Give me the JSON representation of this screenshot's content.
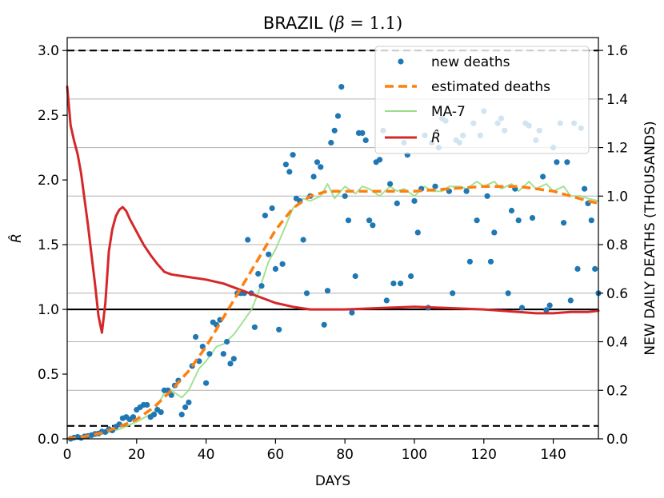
{
  "chart_data": {
    "type": "line",
    "title": "BRAZIL (β = 1.1)",
    "title_prefix": "BRAZIL (",
    "title_beta": "β",
    "title_rest": " = 1.1)",
    "xlabel": "DAYS",
    "ylabel_left": "R̂",
    "ylabel_right": "NEW DAILY DEATHS (THOUSANDS)",
    "xlim": [
      0,
      153
    ],
    "ylim_left": [
      0,
      3.1
    ],
    "ylim_right": [
      0,
      1.653
    ],
    "x_ticks": [
      0,
      20,
      40,
      60,
      80,
      100,
      120,
      140
    ],
    "x_tick_labels": [
      "0",
      "20",
      "40",
      "60",
      "80",
      "100",
      "120",
      "140"
    ],
    "y_left_ticks": [
      0.0,
      0.5,
      1.0,
      1.5,
      2.0,
      2.5,
      3.0
    ],
    "y_left_tick_labels": [
      "0.0",
      "0.5",
      "1.0",
      "1.5",
      "2.0",
      "2.5",
      "3.0"
    ],
    "y_right_ticks": [
      0.0,
      0.2,
      0.4,
      0.6,
      0.8,
      1.0,
      1.2,
      1.4,
      1.6
    ],
    "y_right_tick_labels": [
      "0.0",
      "0.2",
      "0.4",
      "0.6",
      "0.8",
      "1.0",
      "1.2",
      "1.4",
      "1.6"
    ],
    "grid": "horizontal lines at right-axis ticks",
    "reference_lines": [
      {
        "axis": "left",
        "y": 3.0,
        "style": "dashed",
        "color": "#000000"
      },
      {
        "axis": "left",
        "y": 0.1,
        "style": "dashed",
        "color": "#000000"
      },
      {
        "axis": "left",
        "y": 1.0,
        "style": "solid",
        "color": "#000000"
      }
    ],
    "legend": {
      "position": "upper-right",
      "entries": [
        "new deaths",
        "estimated deaths",
        "MA-7",
        "R̂"
      ]
    },
    "series": [
      {
        "name": "new deaths",
        "kind": "scatter",
        "axis": "right",
        "color": "#1f77b4",
        "points": [
          [
            1,
            0.0
          ],
          [
            2,
            0.005
          ],
          [
            3,
            0.008
          ],
          [
            4,
            0.004
          ],
          [
            5,
            0.01
          ],
          [
            6,
            0.012
          ],
          [
            7,
            0.015
          ],
          [
            8,
            0.02
          ],
          [
            9,
            0.022
          ],
          [
            10,
            0.03
          ],
          [
            11,
            0.028
          ],
          [
            12,
            0.04
          ],
          [
            13,
            0.035
          ],
          [
            14,
            0.05
          ],
          [
            15,
            0.06
          ],
          [
            16,
            0.085
          ],
          [
            17,
            0.09
          ],
          [
            18,
            0.08
          ],
          [
            19,
            0.09
          ],
          [
            20,
            0.12
          ],
          [
            21,
            0.13
          ],
          [
            22,
            0.14
          ],
          [
            23,
            0.14
          ],
          [
            24,
            0.09
          ],
          [
            25,
            0.1
          ],
          [
            26,
            0.12
          ],
          [
            27,
            0.11
          ],
          [
            28,
            0.2
          ],
          [
            29,
            0.2
          ],
          [
            30,
            0.18
          ],
          [
            31,
            0.22
          ],
          [
            32,
            0.24
          ],
          [
            33,
            0.1
          ],
          [
            34,
            0.13
          ],
          [
            35,
            0.15
          ],
          [
            36,
            0.3
          ],
          [
            37,
            0.42
          ],
          [
            38,
            0.32
          ],
          [
            39,
            0.38
          ],
          [
            40,
            0.23
          ],
          [
            41,
            0.35
          ],
          [
            42,
            0.48
          ],
          [
            43,
            0.47
          ],
          [
            44,
            0.49
          ],
          [
            45,
            0.35
          ],
          [
            46,
            0.4
          ],
          [
            47,
            0.31
          ],
          [
            48,
            0.33
          ],
          [
            49,
            0.6
          ],
          [
            50,
            0.6
          ],
          [
            51,
            0.6
          ],
          [
            52,
            0.82
          ],
          [
            53,
            0.6
          ],
          [
            54,
            0.46
          ],
          [
            55,
            0.68
          ],
          [
            56,
            0.63
          ],
          [
            57,
            0.92
          ],
          [
            58,
            0.76
          ],
          [
            59,
            0.95
          ],
          [
            60,
            0.7
          ],
          [
            61,
            0.45
          ],
          [
            62,
            0.72
          ],
          [
            63,
            1.13
          ],
          [
            64,
            1.1
          ],
          [
            65,
            1.17
          ],
          [
            66,
            0.99
          ],
          [
            67,
            0.98
          ],
          [
            68,
            0.82
          ],
          [
            69,
            0.6
          ],
          [
            70,
            1.0
          ],
          [
            71,
            1.08
          ],
          [
            72,
            1.14
          ],
          [
            73,
            1.12
          ],
          [
            74,
            0.47
          ],
          [
            75,
            0.61
          ],
          [
            76,
            1.22
          ],
          [
            77,
            1.27
          ],
          [
            78,
            1.33
          ],
          [
            79,
            1.45
          ],
          [
            80,
            1.0
          ],
          [
            81,
            0.9
          ],
          [
            82,
            0.52
          ],
          [
            83,
            0.67
          ],
          [
            84,
            1.26
          ],
          [
            85,
            1.26
          ],
          [
            86,
            1.23
          ],
          [
            87,
            0.9
          ],
          [
            88,
            0.88
          ],
          [
            89,
            1.14
          ],
          [
            90,
            1.15
          ],
          [
            91,
            1.27
          ],
          [
            92,
            0.57
          ],
          [
            93,
            1.05
          ],
          [
            94,
            0.64
          ],
          [
            95,
            0.97
          ],
          [
            96,
            0.64
          ],
          [
            97,
            1.22
          ],
          [
            98,
            1.17
          ],
          [
            99,
            0.67
          ],
          [
            100,
            0.98
          ],
          [
            101,
            0.85
          ],
          [
            102,
            1.03
          ],
          [
            103,
            1.25
          ],
          [
            104,
            0.54
          ],
          [
            105,
            1.22
          ],
          [
            106,
            1.04
          ],
          [
            107,
            1.2
          ],
          [
            108,
            1.32
          ],
          [
            109,
            1.31
          ],
          [
            110,
            1.02
          ],
          [
            111,
            0.6
          ],
          [
            112,
            1.23
          ],
          [
            113,
            1.22
          ],
          [
            114,
            1.25
          ],
          [
            115,
            1.02
          ],
          [
            116,
            0.73
          ],
          [
            117,
            1.3
          ],
          [
            118,
            0.9
          ],
          [
            119,
            1.25
          ],
          [
            120,
            1.35
          ],
          [
            121,
            1.0
          ],
          [
            122,
            0.73
          ],
          [
            123,
            0.85
          ],
          [
            124,
            1.3
          ],
          [
            125,
            1.32
          ],
          [
            126,
            1.27
          ],
          [
            127,
            0.6
          ],
          [
            128,
            0.94
          ],
          [
            129,
            1.03
          ],
          [
            130,
            0.9
          ],
          [
            131,
            0.54
          ],
          [
            132,
            1.3
          ],
          [
            133,
            1.29
          ],
          [
            134,
            0.91
          ],
          [
            135,
            1.23
          ],
          [
            136,
            1.27
          ],
          [
            137,
            1.08
          ],
          [
            138,
            0.53
          ],
          [
            139,
            0.55
          ],
          [
            140,
            1.2
          ],
          [
            141,
            1.14
          ],
          [
            142,
            1.3
          ],
          [
            143,
            0.89
          ],
          [
            144,
            1.14
          ],
          [
            145,
            0.57
          ],
          [
            146,
            1.3
          ],
          [
            147,
            0.7
          ],
          [
            148,
            1.28
          ],
          [
            149,
            1.03
          ],
          [
            150,
            0.97
          ],
          [
            151,
            0.9
          ],
          [
            152,
            0.7
          ],
          [
            153,
            0.6
          ]
        ]
      },
      {
        "name": "estimated deaths",
        "kind": "line",
        "axis": "right",
        "color": "#ff7f0e",
        "style": "dashed",
        "points": [
          [
            0,
            0.0
          ],
          [
            5,
            0.01
          ],
          [
            10,
            0.025
          ],
          [
            15,
            0.05
          ],
          [
            20,
            0.08
          ],
          [
            25,
            0.13
          ],
          [
            30,
            0.2
          ],
          [
            35,
            0.28
          ],
          [
            40,
            0.38
          ],
          [
            45,
            0.5
          ],
          [
            50,
            0.62
          ],
          [
            55,
            0.74
          ],
          [
            60,
            0.86
          ],
          [
            65,
            0.95
          ],
          [
            70,
            1.0
          ],
          [
            75,
            1.02
          ],
          [
            80,
            1.02
          ],
          [
            90,
            1.02
          ],
          [
            100,
            1.02
          ],
          [
            110,
            1.03
          ],
          [
            120,
            1.04
          ],
          [
            125,
            1.04
          ],
          [
            130,
            1.04
          ],
          [
            135,
            1.03
          ],
          [
            140,
            1.02
          ],
          [
            145,
            1.0
          ],
          [
            150,
            0.98
          ],
          [
            153,
            0.97
          ]
        ]
      },
      {
        "name": "MA-7",
        "kind": "line",
        "axis": "right",
        "color": "#98df8a",
        "points": [
          [
            0,
            0.0
          ],
          [
            5,
            0.01
          ],
          [
            10,
            0.02
          ],
          [
            15,
            0.04
          ],
          [
            20,
            0.07
          ],
          [
            25,
            0.11
          ],
          [
            28,
            0.19
          ],
          [
            30,
            0.2
          ],
          [
            33,
            0.17
          ],
          [
            35,
            0.2
          ],
          [
            38,
            0.29
          ],
          [
            40,
            0.32
          ],
          [
            43,
            0.38
          ],
          [
            45,
            0.39
          ],
          [
            48,
            0.43
          ],
          [
            50,
            0.47
          ],
          [
            53,
            0.53
          ],
          [
            55,
            0.6
          ],
          [
            58,
            0.73
          ],
          [
            60,
            0.78
          ],
          [
            63,
            0.88
          ],
          [
            65,
            0.95
          ],
          [
            68,
            0.99
          ],
          [
            70,
            0.98
          ],
          [
            73,
            1.0
          ],
          [
            75,
            1.05
          ],
          [
            77,
            0.99
          ],
          [
            80,
            1.04
          ],
          [
            83,
            1.01
          ],
          [
            85,
            1.04
          ],
          [
            87,
            1.03
          ],
          [
            90,
            1.0
          ],
          [
            93,
            1.04
          ],
          [
            95,
            1.02
          ],
          [
            97,
            1.03
          ],
          [
            100,
            1.0
          ],
          [
            103,
            1.04
          ],
          [
            105,
            1.02
          ],
          [
            108,
            1.02
          ],
          [
            110,
            1.04
          ],
          [
            113,
            1.04
          ],
          [
            115,
            1.03
          ],
          [
            118,
            1.06
          ],
          [
            120,
            1.04
          ],
          [
            123,
            1.06
          ],
          [
            125,
            1.03
          ],
          [
            128,
            1.05
          ],
          [
            130,
            1.02
          ],
          [
            133,
            1.06
          ],
          [
            135,
            1.03
          ],
          [
            138,
            1.05
          ],
          [
            140,
            1.02
          ],
          [
            143,
            1.04
          ],
          [
            145,
            1.0
          ],
          [
            148,
            1.0
          ],
          [
            150,
            0.99
          ],
          [
            153,
            0.98
          ]
        ]
      },
      {
        "name": "R̂",
        "kind": "line",
        "axis": "left",
        "color": "#d62728",
        "points": [
          [
            0,
            2.72
          ],
          [
            1,
            2.42
          ],
          [
            2,
            2.3
          ],
          [
            3,
            2.2
          ],
          [
            4,
            2.05
          ],
          [
            5,
            1.85
          ],
          [
            6,
            1.65
          ],
          [
            7,
            1.42
          ],
          [
            8,
            1.2
          ],
          [
            9,
            0.95
          ],
          [
            10,
            0.82
          ],
          [
            11,
            1.05
          ],
          [
            12,
            1.45
          ],
          [
            13,
            1.62
          ],
          [
            14,
            1.72
          ],
          [
            15,
            1.77
          ],
          [
            16,
            1.79
          ],
          [
            17,
            1.76
          ],
          [
            18,
            1.7
          ],
          [
            20,
            1.6
          ],
          [
            22,
            1.5
          ],
          [
            24,
            1.42
          ],
          [
            26,
            1.35
          ],
          [
            28,
            1.29
          ],
          [
            30,
            1.27
          ],
          [
            35,
            1.25
          ],
          [
            40,
            1.23
          ],
          [
            45,
            1.2
          ],
          [
            50,
            1.15
          ],
          [
            55,
            1.1
          ],
          [
            60,
            1.05
          ],
          [
            65,
            1.02
          ],
          [
            70,
            1.0
          ],
          [
            75,
            1.0
          ],
          [
            80,
            1.0
          ],
          [
            90,
            1.01
          ],
          [
            100,
            1.02
          ],
          [
            110,
            1.01
          ],
          [
            120,
            1.0
          ],
          [
            130,
            0.98
          ],
          [
            135,
            0.97
          ],
          [
            140,
            0.97
          ],
          [
            145,
            0.98
          ],
          [
            150,
            0.98
          ],
          [
            153,
            0.99
          ]
        ]
      }
    ]
  }
}
